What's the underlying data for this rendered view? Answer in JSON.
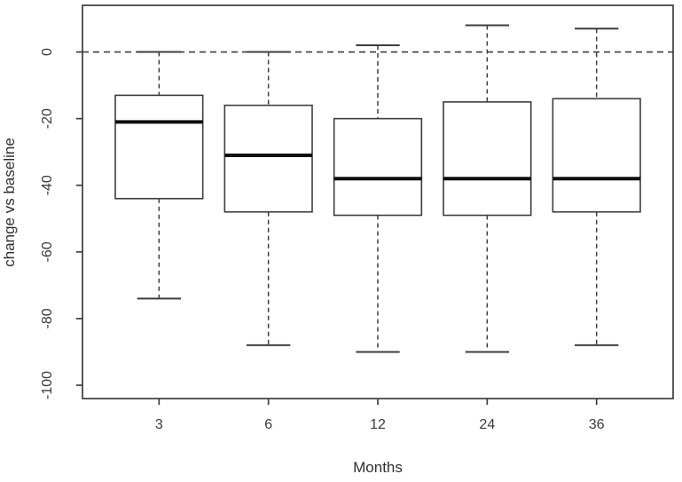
{
  "figure": {
    "background_color": "#ffffff",
    "frame_color": "#3d3d3d",
    "box_line_color": "#3d3d3d",
    "median_color": "#0d0d0d",
    "whisker_color": "#3d3d3d",
    "text_color": "#333333"
  },
  "chart_data": {
    "type": "boxplot",
    "title": "",
    "xlabel": "Months",
    "ylabel": "change vs baseline",
    "categories": [
      "3",
      "6",
      "12",
      "24",
      "36"
    ],
    "yticks": [
      0,
      -20,
      -40,
      -60,
      -80,
      -100
    ],
    "ylim": [
      -104,
      14
    ],
    "grid": false,
    "legend": "none",
    "reference_line": {
      "y": 0,
      "style": "dashed"
    },
    "whisker_style": "dashed",
    "boxes": [
      {
        "category": "3",
        "whisker_low": -74,
        "q1": -44,
        "median": -21,
        "q3": -13,
        "whisker_high": 0
      },
      {
        "category": "6",
        "whisker_low": -88,
        "q1": -48,
        "median": -31,
        "q3": -16,
        "whisker_high": 0
      },
      {
        "category": "12",
        "whisker_low": -90,
        "q1": -49,
        "median": -38,
        "q3": -20,
        "whisker_high": 2
      },
      {
        "category": "24",
        "whisker_low": -90,
        "q1": -49,
        "median": -38,
        "q3": -15,
        "whisker_high": 8
      },
      {
        "category": "36",
        "whisker_low": -88,
        "q1": -48,
        "median": -38,
        "q3": -14,
        "whisker_high": 7
      }
    ]
  }
}
